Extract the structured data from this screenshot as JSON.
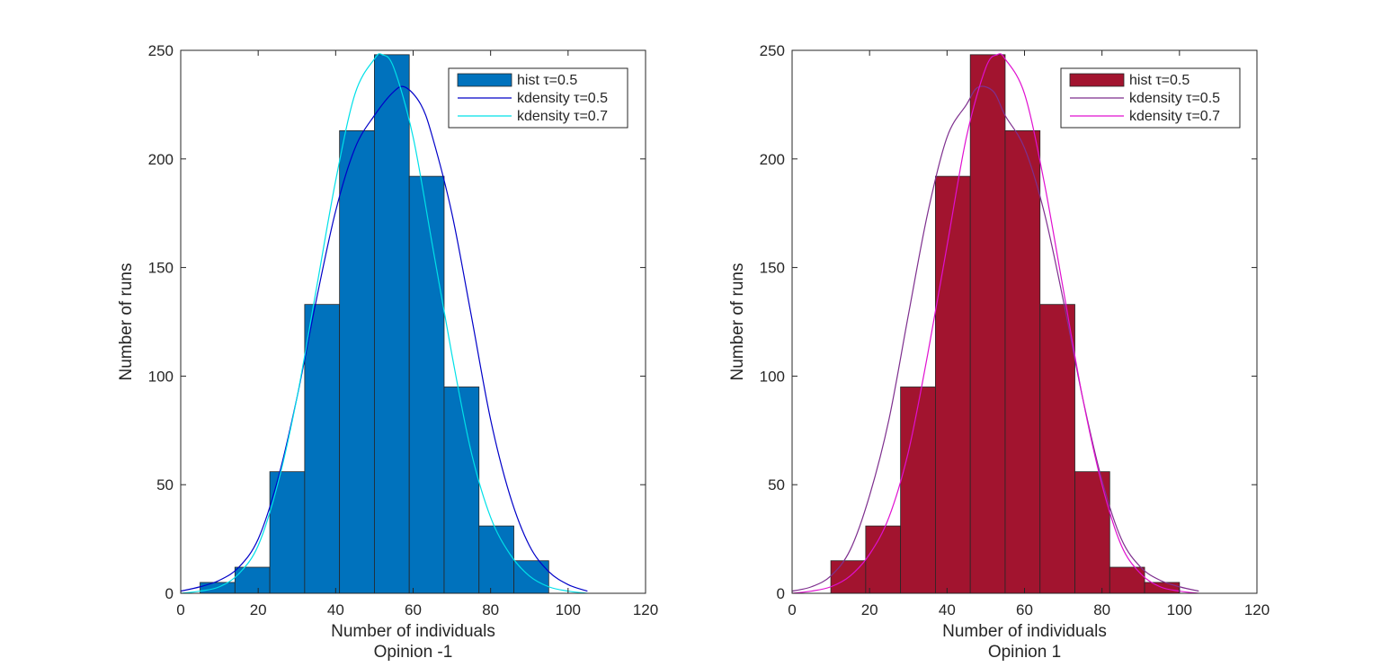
{
  "figure": {
    "background": "#ffffff"
  },
  "chart_data": [
    {
      "type": "bar",
      "xlabel": "Number of individuals",
      "caption": "Opinion -1",
      "ylabel": "Number of runs",
      "xlim": [
        0,
        120
      ],
      "ylim": [
        0,
        250
      ],
      "xticks": [
        0,
        20,
        40,
        60,
        80,
        100,
        120
      ],
      "yticks": [
        0,
        50,
        100,
        150,
        200,
        250
      ],
      "grid": false,
      "legend_position": "top-right",
      "histogram": {
        "name": "hist τ=0.5",
        "color": "#0072BD",
        "bin_edges": [
          5,
          14,
          23,
          32,
          41,
          50,
          59,
          68,
          77,
          86,
          95
        ],
        "counts": [
          5,
          12,
          56,
          133,
          213,
          248,
          192,
          95,
          31,
          15
        ]
      },
      "series": [
        {
          "name": "kdensity τ=0.5",
          "color": "#0000C8",
          "x": [
            0,
            5,
            10,
            15,
            20,
            25,
            30,
            35,
            40,
            45,
            50,
            55,
            58,
            62,
            65,
            70,
            75,
            80,
            85,
            90,
            95,
            100,
            105
          ],
          "y": [
            1,
            3,
            6,
            12,
            25,
            52,
            90,
            135,
            176,
            205,
            220,
            231,
            233,
            225,
            210,
            175,
            128,
            80,
            45,
            22,
            10,
            4,
            1
          ]
        },
        {
          "name": "kdensity τ=0.7",
          "color": "#00E0E8",
          "x": [
            0,
            5,
            10,
            15,
            20,
            25,
            30,
            35,
            40,
            45,
            50,
            52,
            55,
            60,
            65,
            70,
            75,
            80,
            85,
            90,
            95,
            100,
            105
          ],
          "y": [
            0,
            1,
            3,
            9,
            22,
            50,
            90,
            140,
            190,
            230,
            246,
            248,
            242,
            210,
            160,
            110,
            65,
            35,
            18,
            8,
            3,
            1,
            0
          ]
        }
      ]
    },
    {
      "type": "bar",
      "xlabel": "Number of individuals",
      "caption": "Opinion 1",
      "ylabel": "Number of runs",
      "xlim": [
        0,
        120
      ],
      "ylim": [
        0,
        250
      ],
      "xticks": [
        0,
        20,
        40,
        60,
        80,
        100,
        120
      ],
      "yticks": [
        0,
        50,
        100,
        150,
        200,
        250
      ],
      "grid": false,
      "legend_position": "top-right",
      "histogram": {
        "name": "hist τ=0.5",
        "color": "#A2142F",
        "bin_edges": [
          10,
          19,
          28,
          37,
          46,
          55,
          64,
          73,
          82,
          91,
          100
        ],
        "counts": [
          15,
          31,
          95,
          192,
          248,
          213,
          133,
          56,
          12,
          5
        ]
      },
      "series": [
        {
          "name": "kdensity τ=0.5",
          "color": "#7E2F8E",
          "x": [
            0,
            5,
            10,
            15,
            20,
            25,
            30,
            35,
            40,
            45,
            48,
            52,
            55,
            60,
            65,
            70,
            75,
            80,
            85,
            90,
            95,
            100,
            105
          ],
          "y": [
            1,
            3,
            8,
            20,
            45,
            80,
            128,
            175,
            210,
            225,
            233,
            231,
            220,
            205,
            176,
            135,
            90,
            52,
            25,
            12,
            6,
            3,
            1
          ]
        },
        {
          "name": "kdensity τ=0.7",
          "color": "#E010D0",
          "x": [
            0,
            5,
            10,
            15,
            20,
            25,
            30,
            35,
            40,
            45,
            50,
            53,
            55,
            60,
            65,
            70,
            75,
            80,
            85,
            90,
            95,
            100,
            105
          ],
          "y": [
            0,
            1,
            3,
            8,
            18,
            35,
            65,
            110,
            160,
            210,
            242,
            248,
            246,
            230,
            190,
            140,
            90,
            50,
            22,
            9,
            3,
            1,
            0
          ]
        }
      ]
    }
  ]
}
